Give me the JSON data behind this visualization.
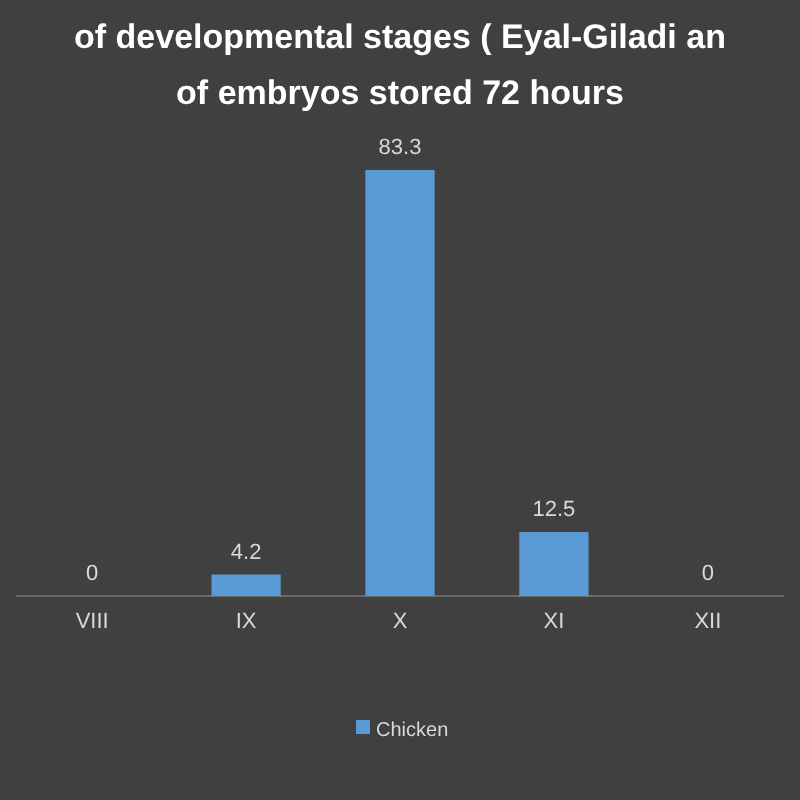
{
  "chart_data": {
    "type": "bar",
    "title": "of developmental stages ( Eyal-Giladi an\nof embryos stored 72 hours",
    "categories": [
      "VIII",
      "IX",
      "X",
      "XI",
      "XII"
    ],
    "series": [
      {
        "name": "Chicken",
        "color": "#5b9bd5",
        "values": [
          0,
          4.2,
          83.3,
          12.5,
          0
        ]
      }
    ],
    "data_labels": true,
    "legend": "bottom"
  }
}
